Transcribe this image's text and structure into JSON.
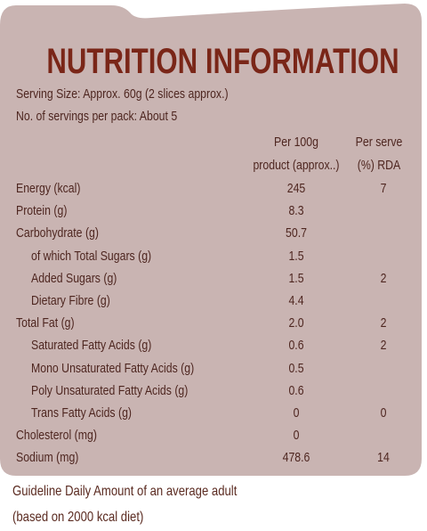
{
  "header": {
    "title": "NUTRITION INFORMATION",
    "serving_size": "Serving Size: Approx. 60g (2 slices approx.)",
    "servings_per_pack": "No. of servings per pack: About 5"
  },
  "table": {
    "columns": [
      [
        "Per 100g",
        "product (approx..)"
      ],
      [
        "Per serve",
        "(%) RDA"
      ]
    ],
    "rows": [
      {
        "label": "Energy (kcal)",
        "per_100g": "245",
        "rda": "7"
      },
      {
        "label": "Protein (g)",
        "per_100g": "8.3"
      },
      {
        "label": "Carbohydrate (g)",
        "per_100g": "50.7"
      },
      {
        "label": "of which Total Sugars (g)",
        "per_100g": "1.5",
        "sub": true
      },
      {
        "label": "Added Sugars (g)",
        "per_100g": "1.5",
        "rda": "2",
        "sub": true
      },
      {
        "label": "Dietary Fibre (g)",
        "per_100g": "4.4",
        "sub": true
      },
      {
        "label": "Total Fat (g)",
        "per_100g": "2.0",
        "rda": "2"
      },
      {
        "label": "Saturated Fatty Acids (g)",
        "per_100g": "0.6",
        "rda": "2",
        "sub": true
      },
      {
        "label": "Mono Unsaturated Fatty Acids (g)",
        "per_100g": "0.5",
        "sub": true
      },
      {
        "label": "Poly Unsaturated Fatty Acids (g)",
        "per_100g": "0.6",
        "sub": true
      },
      {
        "label": "Trans Fatty Acids (g)",
        "per_100g": "0",
        "rda": "0",
        "sub": true
      },
      {
        "label": "Cholesterol (mg)",
        "per_100g": "0"
      },
      {
        "label": "Sodium (mg)",
        "per_100g": "478.6",
        "rda": "14"
      }
    ]
  },
  "footer": [
    "Guideline Daily Amount of an average adult",
    "(based on 2000 kcal diet)"
  ]
}
